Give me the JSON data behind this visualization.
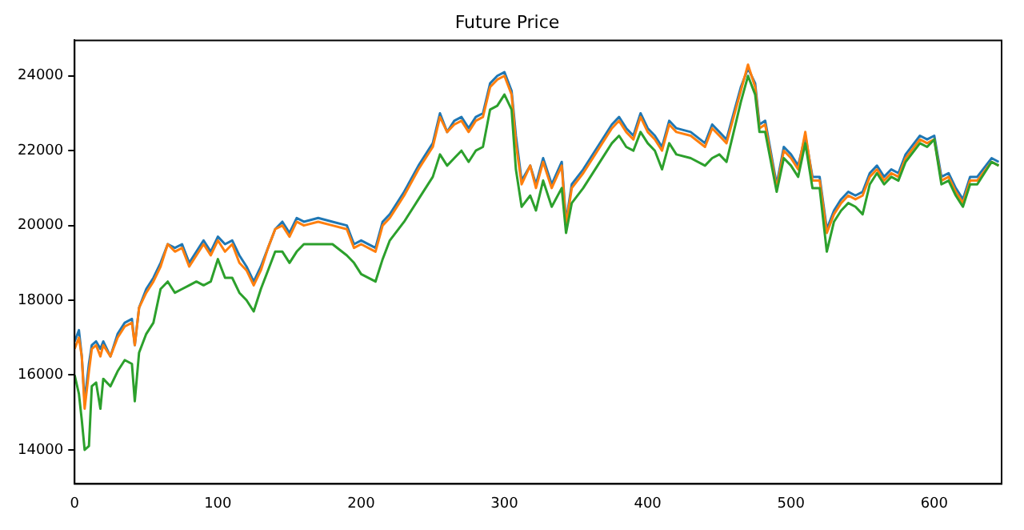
{
  "chart_data": {
    "type": "line",
    "title": "Future Price",
    "x": [
      0,
      3,
      5,
      7,
      10,
      12,
      15,
      18,
      20,
      25,
      30,
      35,
      40,
      42,
      45,
      50,
      55,
      60,
      65,
      70,
      75,
      80,
      85,
      90,
      95,
      100,
      105,
      110,
      115,
      120,
      125,
      130,
      135,
      140,
      145,
      150,
      155,
      160,
      170,
      180,
      190,
      195,
      200,
      210,
      215,
      220,
      230,
      240,
      250,
      255,
      260,
      265,
      270,
      275,
      280,
      285,
      290,
      295,
      300,
      305,
      308,
      312,
      318,
      322,
      327,
      333,
      340,
      343,
      347,
      355,
      365,
      375,
      380,
      385,
      390,
      395,
      400,
      405,
      410,
      415,
      420,
      430,
      440,
      445,
      450,
      455,
      460,
      465,
      470,
      475,
      478,
      482,
      490,
      495,
      500,
      505,
      510,
      515,
      520,
      525,
      530,
      535,
      540,
      545,
      550,
      555,
      560,
      565,
      570,
      575,
      580,
      590,
      595,
      600,
      605,
      610,
      615,
      620,
      625,
      630,
      640,
      645
    ],
    "series": [
      {
        "color": "#1f77b4",
        "values": [
          16900,
          17200,
          16500,
          15300,
          16300,
          16800,
          16900,
          16700,
          16900,
          16500,
          17100,
          17400,
          17500,
          16800,
          17800,
          18300,
          18600,
          19000,
          19500,
          19400,
          19500,
          19000,
          19300,
          19600,
          19300,
          19700,
          19500,
          19600,
          19200,
          18900,
          18500,
          18900,
          19400,
          19900,
          20100,
          19800,
          20200,
          20100,
          20200,
          20100,
          20000,
          19500,
          19600,
          19400,
          20100,
          20300,
          20900,
          21600,
          22200,
          23000,
          22500,
          22800,
          22900,
          22600,
          22900,
          23000,
          23800,
          24000,
          24100,
          23600,
          22400,
          21200,
          21600,
          21100,
          21800,
          21100,
          21700,
          20100,
          21100,
          21500,
          22100,
          22700,
          22900,
          22600,
          22400,
          23000,
          22600,
          22400,
          22100,
          22800,
          22600,
          22500,
          22200,
          22700,
          22500,
          22300,
          23000,
          23700,
          24200,
          23800,
          22700,
          22800,
          21100,
          22100,
          21900,
          21600,
          22400,
          21300,
          21300,
          19900,
          20400,
          20700,
          20900,
          20800,
          20900,
          21400,
          21600,
          21300,
          21500,
          21400,
          21900,
          22400,
          22300,
          22400,
          21300,
          21400,
          21000,
          20700,
          21300,
          21300,
          21800,
          21700
        ]
      },
      {
        "color": "#ff7f0e",
        "values": [
          16700,
          17000,
          16500,
          15100,
          16100,
          16700,
          16800,
          16500,
          16800,
          16500,
          17000,
          17300,
          17400,
          16800,
          17800,
          18200,
          18500,
          18900,
          19500,
          19300,
          19400,
          18900,
          19200,
          19500,
          19200,
          19600,
          19300,
          19500,
          19000,
          18800,
          18400,
          18800,
          19400,
          19900,
          20000,
          19700,
          20100,
          20000,
          20100,
          20000,
          19900,
          19400,
          19500,
          19300,
          20000,
          20200,
          20800,
          21500,
          22100,
          22900,
          22500,
          22700,
          22800,
          22500,
          22800,
          22900,
          23700,
          23900,
          24000,
          23500,
          22200,
          21100,
          21600,
          21000,
          21700,
          21000,
          21600,
          20000,
          21000,
          21400,
          22000,
          22600,
          22800,
          22500,
          22300,
          22900,
          22500,
          22300,
          22000,
          22700,
          22500,
          22400,
          22100,
          22600,
          22400,
          22200,
          22900,
          23600,
          24300,
          23700,
          22600,
          22700,
          21000,
          22000,
          21800,
          21500,
          22500,
          21200,
          21200,
          19800,
          20300,
          20600,
          20800,
          20700,
          20800,
          21300,
          21500,
          21200,
          21400,
          21300,
          21800,
          22300,
          22200,
          22300,
          21200,
          21300,
          20900,
          20600,
          21200,
          21200,
          21700,
          21600
        ]
      },
      {
        "color": "#2ca02c",
        "values": [
          16000,
          15500,
          14800,
          14000,
          14100,
          15700,
          15800,
          15100,
          15900,
          15700,
          16100,
          16400,
          16300,
          15300,
          16600,
          17100,
          17400,
          18300,
          18500,
          18200,
          18300,
          18400,
          18500,
          18400,
          18500,
          19100,
          18600,
          18600,
          18200,
          18000,
          17700,
          18300,
          18800,
          19300,
          19300,
          19000,
          19300,
          19500,
          19500,
          19500,
          19200,
          19000,
          18700,
          18500,
          19100,
          19600,
          20100,
          20700,
          21300,
          21900,
          21600,
          21800,
          22000,
          21700,
          22000,
          22100,
          23100,
          23200,
          23500,
          23100,
          21500,
          20500,
          20800,
          20400,
          21200,
          20500,
          21000,
          19800,
          20600,
          21000,
          21600,
          22200,
          22400,
          22100,
          22000,
          22500,
          22200,
          22000,
          21500,
          22200,
          21900,
          21800,
          21600,
          21800,
          21900,
          21700,
          22500,
          23300,
          24000,
          23500,
          22500,
          22500,
          20900,
          21800,
          21600,
          21300,
          22200,
          21000,
          21000,
          19300,
          20100,
          20400,
          20600,
          20500,
          20300,
          21100,
          21400,
          21100,
          21300,
          21200,
          21700,
          22200,
          22100,
          22300,
          21100,
          21200,
          20800,
          20500,
          21100,
          21100,
          21700,
          21600
        ]
      }
    ],
    "xlim": [
      0,
      647
    ],
    "xticks": [
      0,
      100,
      200,
      300,
      400,
      500,
      600
    ],
    "ylim": [
      13090,
      24950
    ],
    "yticks": [
      14000,
      16000,
      18000,
      20000,
      22000,
      24000
    ],
    "grid": false,
    "legend": false,
    "marker": "none",
    "line_style": "solid"
  }
}
